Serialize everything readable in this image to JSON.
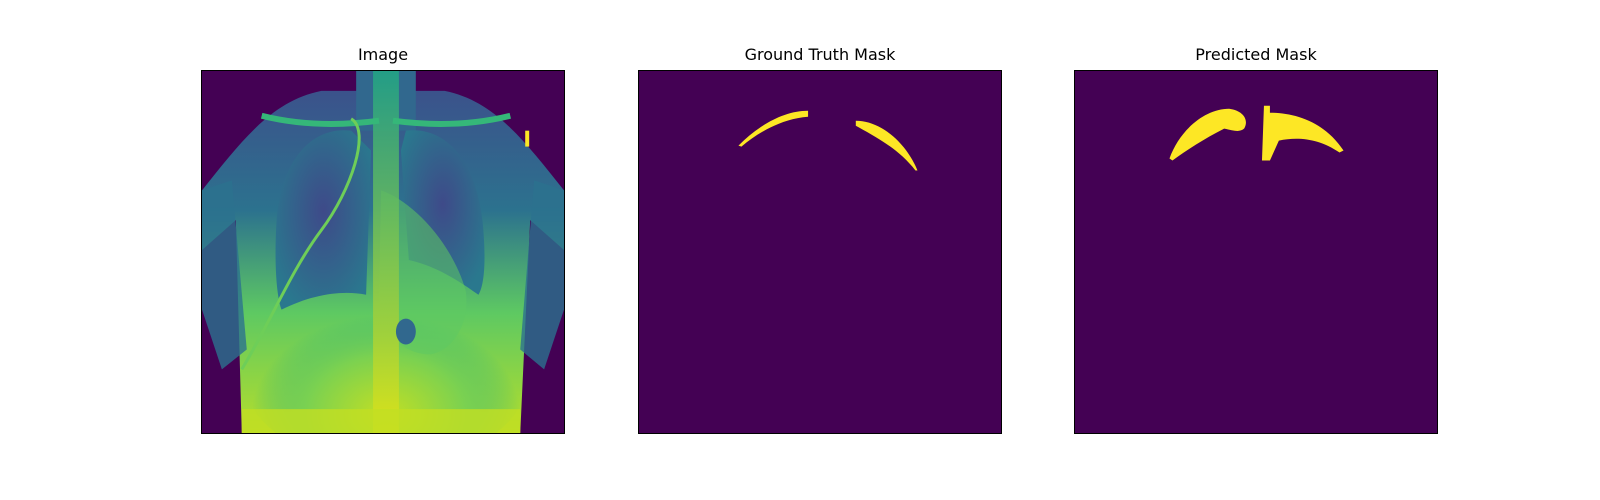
{
  "figure": {
    "panels": [
      {
        "title": "Image",
        "colormap": "viridis"
      },
      {
        "title": "Ground Truth Mask",
        "colormap": "viridis"
      },
      {
        "title": "Predicted Mask",
        "colormap": "viridis"
      }
    ],
    "colors": {
      "background": "#440154",
      "mask": "#fde725",
      "xray_mid": "#21918c",
      "xray_bright": "#b5de2b"
    }
  }
}
